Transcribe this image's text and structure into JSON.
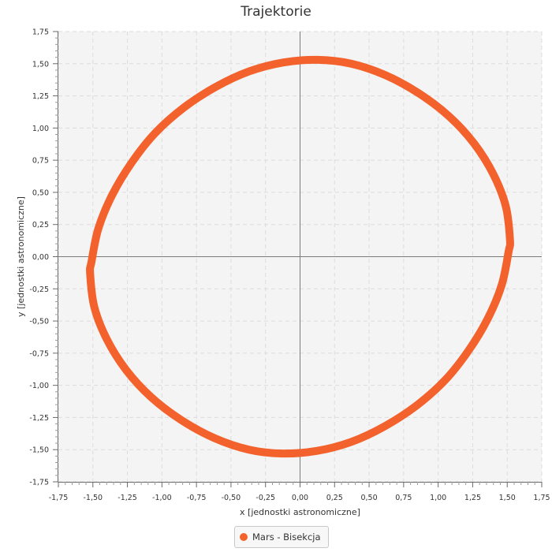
{
  "chart_data": {
    "type": "line",
    "title": "Trajektorie",
    "xlabel": "x [jednostki astronomiczne]",
    "ylabel": "y [jednostki astronomiczne]",
    "xlim": [
      -1.75,
      1.75
    ],
    "ylim": [
      -1.75,
      1.75
    ],
    "x_tick_labels": [
      "-1,75",
      "-1,50",
      "-1,25",
      "-1,00",
      "-0,75",
      "-0,50",
      "-0,25",
      "0,00",
      "0,25",
      "0,50",
      "0,75",
      "1,00",
      "1,25",
      "1,50",
      "1,75"
    ],
    "y_tick_labels": [
      "1,75",
      "1,50",
      "1,25",
      "1,00",
      "0,75",
      "0,50",
      "0,25",
      "0,00",
      "-0,25",
      "-0,50",
      "-0,75",
      "-1,00",
      "-1,25",
      "-1,50",
      "-1,75"
    ],
    "grid": true,
    "legend_position": "bottom-center",
    "series": [
      {
        "name": "Mars - Bisekcja",
        "color": "#f3622d",
        "x": [
          1.52,
          1.49,
          1.4,
          1.26,
          1.08,
          0.86,
          0.62,
          0.37,
          0.13,
          -0.12,
          -0.37,
          -0.61,
          -0.84,
          -1.05,
          -1.22,
          -1.36,
          -1.46,
          -1.51,
          -1.52,
          -1.49,
          -1.4,
          -1.26,
          -1.08,
          -0.86,
          -0.62,
          -0.37,
          -0.13,
          0.12,
          0.37,
          0.61,
          0.84,
          1.05,
          1.22,
          1.36,
          1.46,
          1.51,
          1.52
        ],
        "y": [
          0.13,
          0.39,
          0.64,
          0.88,
          1.09,
          1.27,
          1.41,
          1.5,
          1.53,
          1.51,
          1.44,
          1.32,
          1.16,
          0.96,
          0.73,
          0.48,
          0.22,
          -0.04,
          -0.13,
          -0.39,
          -0.64,
          -0.88,
          -1.09,
          -1.27,
          -1.41,
          -1.5,
          -1.53,
          -1.51,
          -1.44,
          -1.32,
          -1.16,
          -0.96,
          -0.73,
          -0.48,
          -0.22,
          0.04,
          0.13
        ]
      }
    ]
  }
}
